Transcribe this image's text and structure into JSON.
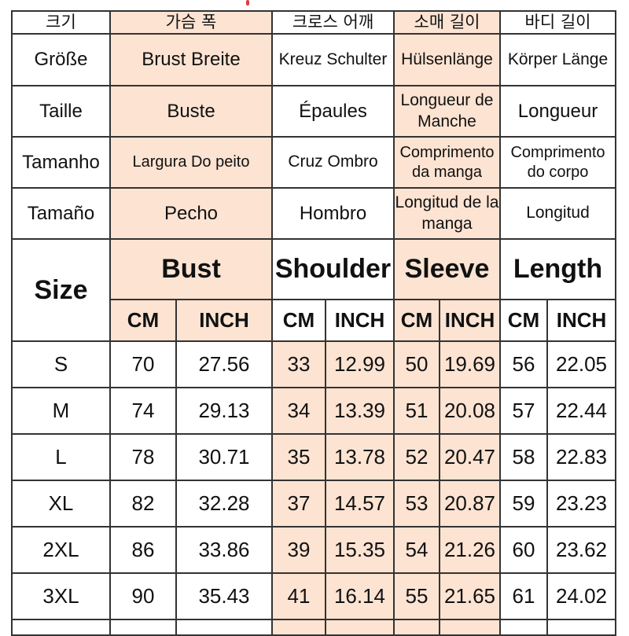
{
  "accent_shading": "#fce3d2",
  "rows_lang": [
    {
      "lang": "ko",
      "size": "크기",
      "bust": "가슴 폭",
      "shoulder": "크로스 어깨",
      "sleeve": "소매 길이",
      "length": "바디 길이"
    },
    {
      "lang": "de",
      "size": "Größe",
      "bust": "Brust Breite",
      "shoulder": "Kreuz Schulter",
      "sleeve": "Hülsenlänge",
      "length": "Körper Länge"
    },
    {
      "lang": "fr",
      "size": "Taille",
      "bust": "Buste",
      "shoulder": "Épaules",
      "sleeve": "Longueur de Manche",
      "length": "Longueur"
    },
    {
      "lang": "pt",
      "size": "Tamanho",
      "bust": "Largura Do peito",
      "shoulder": "Cruz Ombro",
      "sleeve": "Comprimento da manga",
      "length": "Comprimento do corpo"
    },
    {
      "lang": "es",
      "size": "Tamaño",
      "bust": "Pecho",
      "shoulder": "Hombro",
      "sleeve": "Longitud de la manga",
      "length": "Longitud"
    }
  ],
  "header": {
    "size": "Size",
    "bust": "Bust",
    "shoulder": "Shoulder",
    "sleeve": "Sleeve",
    "length": "Length",
    "cm": "CM",
    "inch": "INCH"
  },
  "sizes": [
    {
      "size": "S",
      "bust_cm": "70",
      "bust_in": "27.56",
      "shoulder_cm": "33",
      "shoulder_in": "12.99",
      "sleeve_cm": "50",
      "sleeve_in": "19.69",
      "length_cm": "56",
      "length_in": "22.05"
    },
    {
      "size": "M",
      "bust_cm": "74",
      "bust_in": "29.13",
      "shoulder_cm": "34",
      "shoulder_in": "13.39",
      "sleeve_cm": "51",
      "sleeve_in": "20.08",
      "length_cm": "57",
      "length_in": "22.44"
    },
    {
      "size": "L",
      "bust_cm": "78",
      "bust_in": "30.71",
      "shoulder_cm": "35",
      "shoulder_in": "13.78",
      "sleeve_cm": "52",
      "sleeve_in": "20.47",
      "length_cm": "58",
      "length_in": "22.83"
    },
    {
      "size": "XL",
      "bust_cm": "82",
      "bust_in": "32.28",
      "shoulder_cm": "37",
      "shoulder_in": "14.57",
      "sleeve_cm": "53",
      "sleeve_in": "20.87",
      "length_cm": "59",
      "length_in": "23.23"
    },
    {
      "size": "2XL",
      "bust_cm": "86",
      "bust_in": "33.86",
      "shoulder_cm": "39",
      "shoulder_in": "15.35",
      "sleeve_cm": "54",
      "sleeve_in": "21.26",
      "length_cm": "60",
      "length_in": "23.62"
    },
    {
      "size": "3XL",
      "bust_cm": "90",
      "bust_in": "35.43",
      "shoulder_cm": "41",
      "shoulder_in": "16.14",
      "sleeve_cm": "55",
      "sleeve_in": "21.65",
      "length_cm": "61",
      "length_in": "24.02"
    }
  ]
}
